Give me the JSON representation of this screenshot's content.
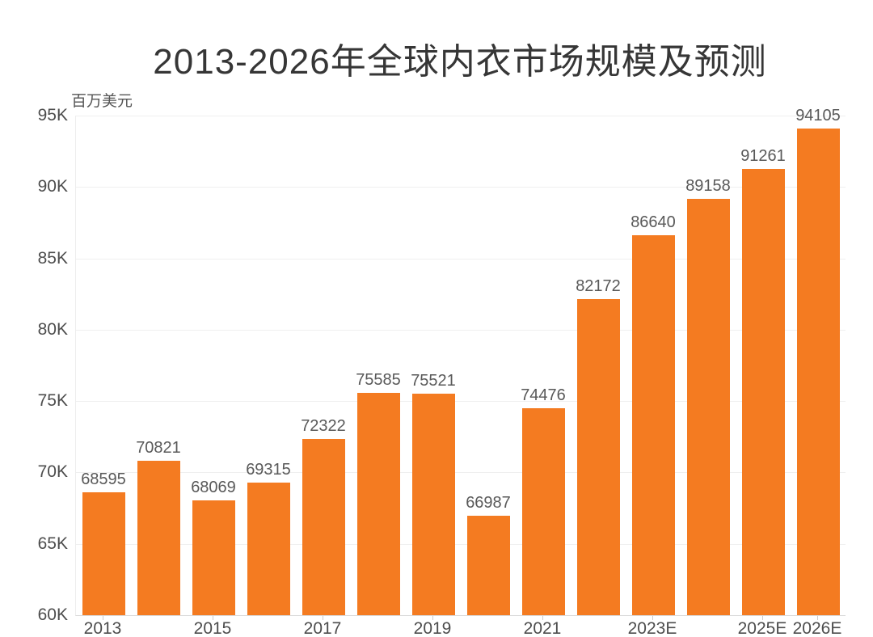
{
  "page": {
    "background_color": "#ffffff"
  },
  "chart_data": {
    "type": "bar",
    "title": "2013-2026年全球内衣市场规模及预测",
    "ylabel": "百万美元",
    "xlabel": "",
    "categories": [
      "2013",
      "2014",
      "2015",
      "2016",
      "2017",
      "2018",
      "2019",
      "2020",
      "2021",
      "2022",
      "2023E",
      "2024E",
      "2025E",
      "2026E"
    ],
    "values": [
      68595,
      70821,
      68069,
      69315,
      72322,
      75585,
      75521,
      66987,
      74476,
      82172,
      86640,
      89158,
      91261,
      94105
    ],
    "value_labels_shown": true,
    "x_tick_labels": [
      "2013",
      "2015",
      "2017",
      "2019",
      "2021",
      "2023E",
      "2025E",
      "2026E"
    ],
    "x_tick_indices": [
      0,
      2,
      4,
      6,
      8,
      10,
      12,
      13
    ],
    "y_tick_labels": [
      "60K",
      "65K",
      "70K",
      "75K",
      "80K",
      "85K",
      "90K",
      "95K"
    ],
    "y_tick_values": [
      60000,
      65000,
      70000,
      75000,
      80000,
      85000,
      90000,
      95000
    ],
    "ylim": [
      60000,
      95000
    ],
    "grid": true,
    "legend": "none",
    "colors": {
      "bar": "#F47B21",
      "title_text": "#363636",
      "axis_label_text": "#4d4d4d",
      "value_label_text": "#595959",
      "gridline": "#efefef",
      "axis_line": "#d9d9d9"
    }
  }
}
